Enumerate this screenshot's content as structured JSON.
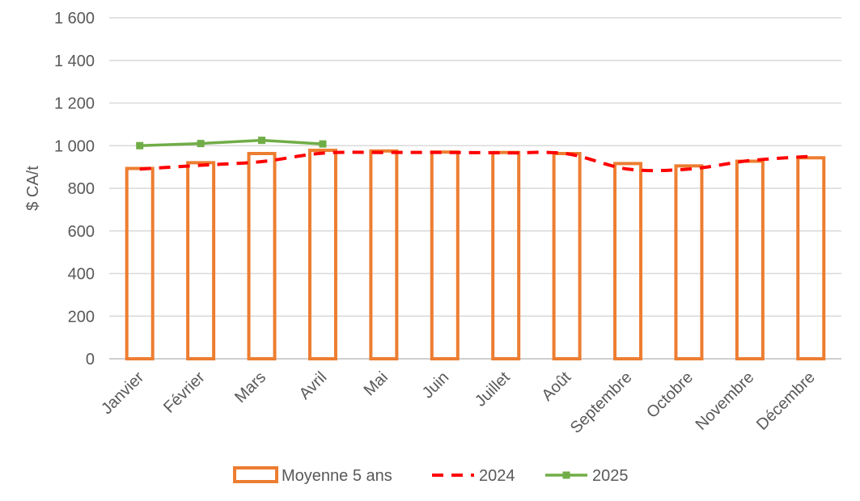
{
  "chart_data": {
    "type": "bar",
    "categories": [
      "Janvier",
      "Février",
      "Mars",
      "Avril",
      "Mai",
      "Juin",
      "Juillet",
      "Août",
      "Septembre",
      "Octobre",
      "Novembre",
      "Décembre"
    ],
    "ylabel": "$ CA/t",
    "xlabel": "",
    "ylim": [
      0,
      1600
    ],
    "yticks": [
      0,
      200,
      400,
      600,
      800,
      1000,
      1200,
      1400,
      1600
    ],
    "ytick_labels": [
      "0",
      "200",
      "400",
      "600",
      "800",
      "1 000",
      "1 200",
      "1 400",
      "1 600"
    ],
    "grid": true,
    "legend_position": "bottom",
    "series": [
      {
        "name": "Moyenne 5 ans",
        "kind": "bar",
        "style": "outline",
        "color": "#ED7D31",
        "values": [
          893,
          920,
          963,
          978,
          975,
          970,
          968,
          963,
          916,
          905,
          927,
          943
        ]
      },
      {
        "name": "2024",
        "kind": "line",
        "style": "dashed",
        "color": "#FF0000",
        "values": [
          890,
          908,
          925,
          965,
          968,
          968,
          966,
          962,
          890,
          890,
          930,
          950
        ]
      },
      {
        "name": "2025",
        "kind": "line",
        "style": "solid-markers",
        "color": "#70AD47",
        "values": [
          1000,
          1010,
          1025,
          1008,
          null,
          null,
          null,
          null,
          null,
          null,
          null,
          null
        ]
      }
    ]
  }
}
